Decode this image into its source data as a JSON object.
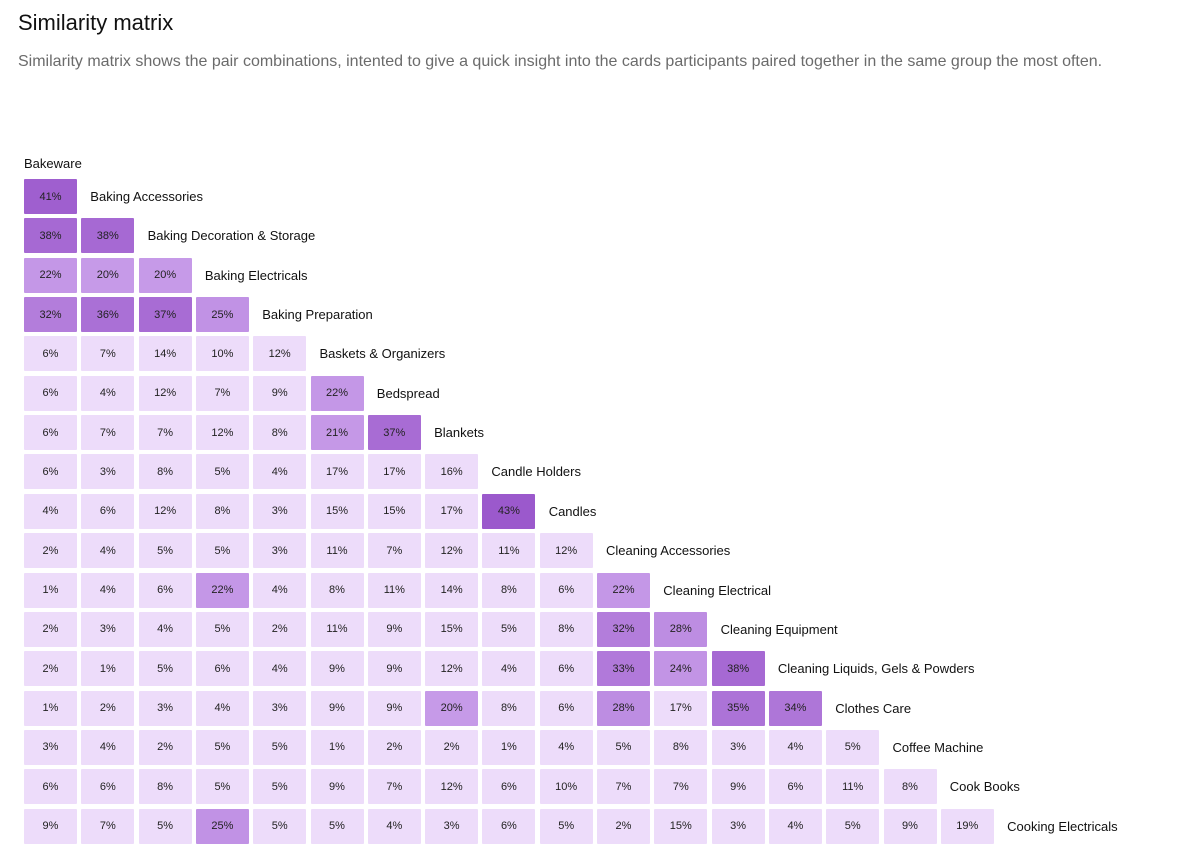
{
  "header": {
    "title": "Similarity matrix",
    "description": "Similarity matrix shows the pair combinations, intented to give a quick insight into the cards participants paired together in the same group the most often."
  },
  "colors": {
    "low": "#eddcfa",
    "mid": "#c69ae8",
    "high": "#9b59cc"
  },
  "chart_data": {
    "type": "heatmap",
    "title": "Similarity matrix",
    "unit": "%",
    "categories": [
      "Bakeware",
      "Baking Accessories",
      "Baking Decoration & Storage",
      "Baking Electricals",
      "Baking Preparation",
      "Baskets & Organizers",
      "Bedspread",
      "Blankets",
      "Candle Holders",
      "Candles",
      "Cleaning Accessories",
      "Cleaning Electrical",
      "Cleaning Equipment",
      "Cleaning Liquids, Gels & Powders",
      "Clothes Care",
      "Coffee Machine",
      "Cook Books",
      "Cooking Electricals"
    ],
    "values": [
      [
        41
      ],
      [
        38,
        38
      ],
      [
        22,
        20,
        20
      ],
      [
        32,
        36,
        37,
        25
      ],
      [
        6,
        7,
        14,
        10,
        12
      ],
      [
        6,
        4,
        12,
        7,
        9,
        22
      ],
      [
        6,
        7,
        7,
        12,
        8,
        21,
        37
      ],
      [
        6,
        3,
        8,
        5,
        4,
        17,
        17,
        16
      ],
      [
        4,
        6,
        12,
        8,
        3,
        15,
        15,
        17,
        43
      ],
      [
        2,
        4,
        5,
        5,
        3,
        11,
        7,
        12,
        11,
        12
      ],
      [
        1,
        4,
        6,
        22,
        4,
        8,
        11,
        14,
        8,
        6,
        22
      ],
      [
        2,
        3,
        4,
        5,
        2,
        11,
        9,
        15,
        5,
        8,
        32,
        28
      ],
      [
        2,
        1,
        5,
        6,
        4,
        9,
        9,
        12,
        4,
        6,
        33,
        24,
        38
      ],
      [
        1,
        2,
        3,
        4,
        3,
        9,
        9,
        20,
        8,
        6,
        28,
        17,
        35,
        34
      ],
      [
        3,
        4,
        2,
        5,
        5,
        1,
        2,
        2,
        1,
        4,
        5,
        8,
        3,
        4,
        5
      ],
      [
        6,
        6,
        8,
        5,
        5,
        9,
        7,
        12,
        6,
        10,
        7,
        7,
        9,
        6,
        11,
        8
      ],
      [
        9,
        7,
        5,
        25,
        5,
        5,
        4,
        3,
        6,
        5,
        2,
        15,
        3,
        4,
        5,
        9,
        19
      ]
    ]
  }
}
